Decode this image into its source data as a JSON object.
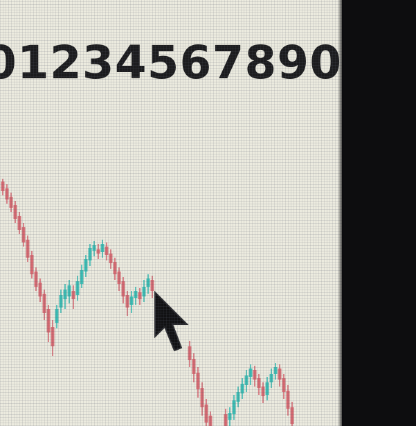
{
  "window": {
    "number_text": "01234567890"
  },
  "chart_data": {
    "type": "candlestick",
    "colors": {
      "up": "#2fb9b0",
      "down": "#d4606a",
      "background": "#ecebdf",
      "text": "#1b1b1d"
    }
  },
  "cursor": {
    "icon": "arrow-cursor-icon"
  }
}
